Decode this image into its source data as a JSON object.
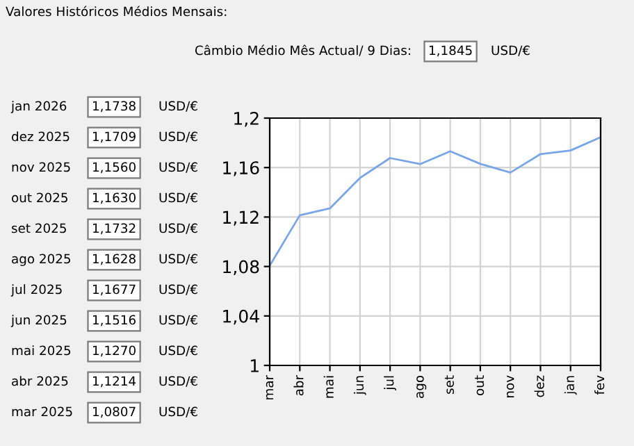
{
  "chart_data": {
    "type": "line",
    "title": "Valores Históricos Médios Mensais:",
    "categories": [
      "mar",
      "abr",
      "mai",
      "jun",
      "jul",
      "ago",
      "set",
      "out",
      "nov",
      "dez",
      "jan",
      "fev"
    ],
    "series": [
      {
        "color": "#79a6e8",
        "values": [
          1.0807,
          1.1214,
          1.127,
          1.1516,
          1.1677,
          1.1628,
          1.1732,
          1.163,
          1.156,
          1.1709,
          1.1738,
          1.1845
        ]
      }
    ],
    "ylim": [
      1,
      1.2
    ],
    "yticks": [
      {
        "value": 1,
        "label": "1"
      },
      {
        "value": 1.04,
        "label": "1,04"
      },
      {
        "value": 1.08,
        "label": "1,08"
      },
      {
        "value": 1.12,
        "label": "1,12"
      },
      {
        "value": 1.16,
        "label": "1,16"
      },
      {
        "value": 1.2,
        "label": "1,2"
      }
    ],
    "grid": true,
    "marker": "none",
    "line_style": "solid",
    "annotations": [
      "Câmbio Médio Mês Actual/ 9 Dias:",
      "1,1845",
      "USD/€",
      "jan 2026",
      "dez 2025",
      "nov 2025",
      "out 2025",
      "set 2025",
      "ago 2025",
      "jul 2025",
      "jun 2025",
      "mai 2025",
      "abr 2025",
      "mar 2025",
      "1,1738",
      "1,1709",
      "1,1560",
      "1,1630",
      "1,1732",
      "1,1628",
      "1,1677",
      "1,1516",
      "1,1270",
      "1,1214",
      "1,0807",
      "USD/€",
      "USD/€",
      "USD/€",
      "USD/€",
      "USD/€",
      "USD/€",
      "USD/€",
      "USD/€",
      "USD/€",
      "USD/€",
      "USD/€"
    ]
  }
}
